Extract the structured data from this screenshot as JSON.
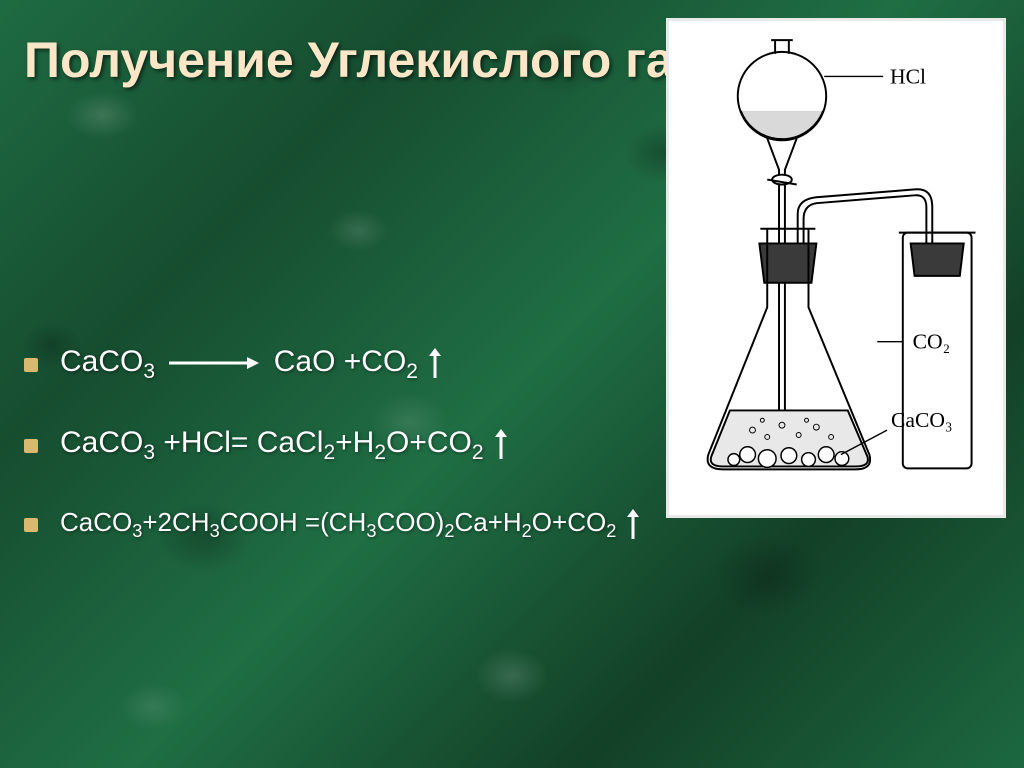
{
  "background_color": "#1a5c3a",
  "title": {
    "text": "Получение Углекислого газа",
    "color": "#fbe7c7",
    "font_size": 50,
    "font_weight": "bold"
  },
  "bullet": {
    "color": "#d9b86f",
    "size": 14
  },
  "equations": {
    "text_color": "#ffffff",
    "font_size": 30,
    "items": [
      {
        "lhs": "CaCO<sub>3</sub>",
        "arrow": true,
        "rhs": "CaO +CO<sub>2</sub>",
        "gas_arrow": true
      },
      {
        "full": "CaCO<sub>3</sub> +HCl= CaCl<sub>2</sub>+H<sub>2</sub>O+CO<sub>2</sub>",
        "gas_arrow": true
      },
      {
        "full": "CaCO<sub>3</sub>+2CH<sub>3</sub>COOH =(CH<sub>3</sub>COO)<sub>2</sub>Ca+H<sub>2</sub>O+CO<sub>2</sub>",
        "gas_arrow": true
      }
    ]
  },
  "diagram": {
    "panel_bg": "#ffffff",
    "panel_border": "#e9e9e9",
    "stroke": "#000000",
    "stroke_width": 2,
    "liquid_fill": "#d9d9d9",
    "labels": {
      "hcl": "HCl",
      "co2": "CO₂",
      "caco3": "CaCO₃"
    },
    "label_font": "Times New Roman",
    "label_fontsize": 22
  }
}
